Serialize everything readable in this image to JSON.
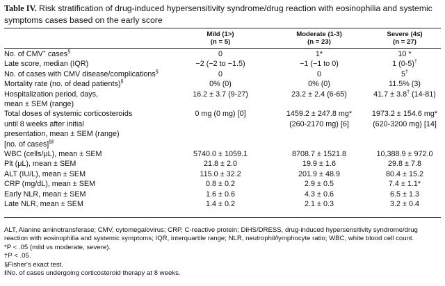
{
  "title": {
    "label": "Table IV.",
    "text": "Risk stratification of drug-induced hypersensitivity syndrome/drug reaction with eosinophilia and systemic symptoms cases based on the early score"
  },
  "columns": [
    {
      "name": "Mild (1>)",
      "n": "(n = 5)"
    },
    {
      "name": "Moderate (1-3)",
      "n": "(n = 23)"
    },
    {
      "name": "Severe (4≤)",
      "n": "(n = 27)"
    }
  ],
  "rows": [
    {
      "label": "No. of CMV",
      "label_sup": "+",
      "label_tail": " cases",
      "label_mark": "§",
      "values": [
        "0",
        "1*",
        "10 *"
      ]
    },
    {
      "label": "Late score, median (IQR)",
      "values": [
        "−2 (−2 to −1.5)",
        "−1 (−1 to 0)",
        "1 (0-5)"
      ],
      "v3_sup": "†"
    },
    {
      "label": "No. of cases with CMV disease/complications",
      "label_mark": "§",
      "values": [
        "0",
        "0",
        "5"
      ],
      "v3_sup": "†"
    },
    {
      "label": "Mortality rate (no. of dead patients)",
      "label_mark": "§",
      "values": [
        "0% (0)",
        "0% (0)",
        "11.5% (3)"
      ]
    },
    {
      "label": "Hospitalization period, days,",
      "label2": "mean ± SEM (range)",
      "values": [
        "16.2 ± 3.7 (9-27)",
        "23.2 ± 2.4 (6-65)",
        "41.7 ± 3.8"
      ],
      "v3_sup": "†",
      "v3_tail": " (14-81)"
    },
    {
      "label": "Total doses of systemic corticosteroids",
      "label2": "until 8 weeks after initial",
      "label3": "presentation, mean ± SEM (range)",
      "label4": "[no. of cases]",
      "label4_mark": "§‖",
      "values": [
        "0 mg (0 mg) [0]",
        "1459.2 ± 247.8 mg*",
        "1973.2 ± 154.6 mg*"
      ],
      "values2": [
        "",
        "(260-2170 mg) [6]",
        "(620-3200 mg) [14]"
      ]
    },
    {
      "label": "WBC (cells/μL), mean ± SEM",
      "values": [
        "5740.0 ± 1059.1",
        "8708.7 ± 1521.8",
        "10,388.9 ± 972.0"
      ]
    },
    {
      "label": "Plt (μL), mean ± SEM",
      "values": [
        "21.8 ± 2.0",
        "19.9 ± 1.6",
        "29.8 ± 7.8"
      ]
    },
    {
      "label": "ALT (IU/L), mean ± SEM",
      "values": [
        "115.0 ± 32.2",
        "201.9 ± 48.9",
        "80.4 ± 15.2"
      ]
    },
    {
      "label": "CRP (mg/dL), mean ± SEM",
      "values": [
        "0.8 ± 0.2",
        "2.9 ± 0.5",
        "7.4 ± 1.1*"
      ]
    },
    {
      "label": "Early NLR, mean ± SEM",
      "values": [
        "1.6 ± 0.6",
        "4.3 ± 0.6",
        "6.5 ± 1.3"
      ]
    },
    {
      "label": "Late NLR, mean ± SEM",
      "values": [
        "1.4 ± 0.2",
        "2.1 ± 0.3",
        "3.2 ± 0.4"
      ]
    }
  ],
  "footnotes": {
    "abbrev": "ALT, Alanine aminotransferase; CMV, cytomegalovirus; CRP, C-reactive protein; DiHS/DRESS, drug-induced hypersensitivity syndrome/drug reaction with eosinophilia and systemic symptoms; IQR, interquartile range; NLR, neutrophil/lymphocyte ratio; WBC, white blood cell count.",
    "star": "*P < .05 (mild vs moderate, severe).",
    "dagger": "†P < .05.",
    "section": "§Fisher's exact test.",
    "parallel": "‖No. of cases undergoing corticosteroid therapy at 8 weeks."
  }
}
